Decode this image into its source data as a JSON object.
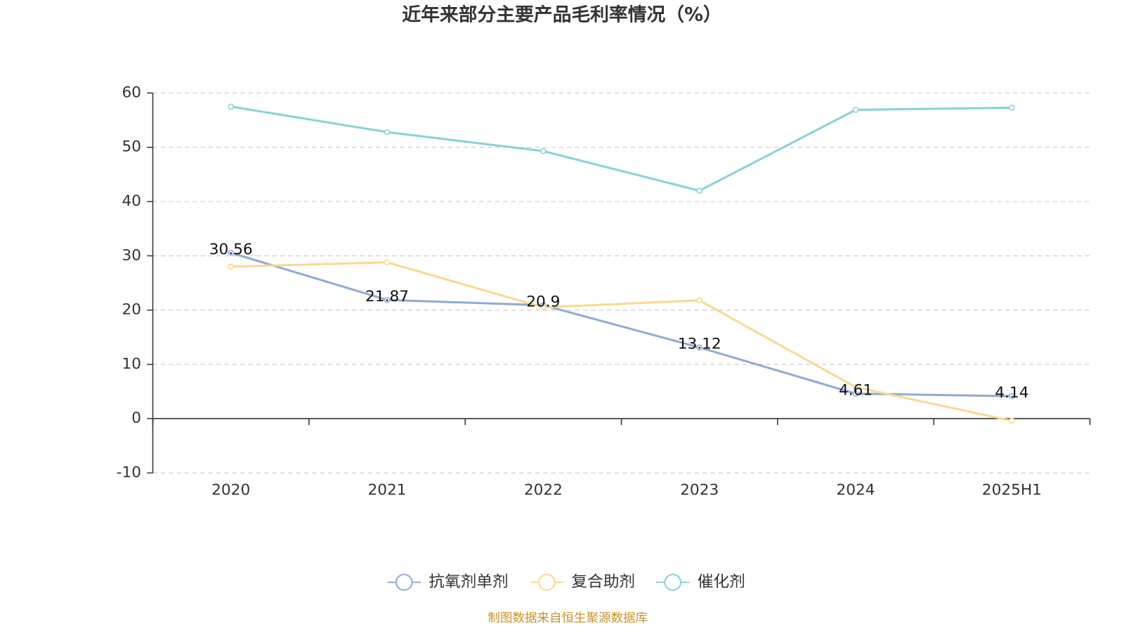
{
  "chart_data": {
    "type": "line",
    "title": "近年来部分主要产品毛利率情况（%）",
    "source": "制图数据来自恒生聚源数据库",
    "categories": [
      "2020",
      "2021",
      "2022",
      "2023",
      "2024",
      "2025H1"
    ],
    "series": [
      {
        "name": "抗氧剂单剂",
        "color": "#8eabd8",
        "values": [
          30.56,
          21.87,
          20.9,
          13.12,
          4.61,
          4.14
        ],
        "show_labels": true
      },
      {
        "name": "复合助剂",
        "color": "#fbd88f",
        "values": [
          28.0,
          28.8,
          20.5,
          21.8,
          5.8,
          -0.4
        ],
        "show_labels": false
      },
      {
        "name": "催化剂",
        "color": "#86d4d6",
        "values": [
          57.5,
          52.8,
          49.3,
          42.0,
          56.9,
          57.3
        ],
        "show_labels": false
      }
    ],
    "ylim": [
      -10,
      60
    ],
    "yticks": [
      -10,
      0,
      10,
      20,
      30,
      40,
      50,
      60
    ],
    "grid": true,
    "legend": "bottom"
  }
}
